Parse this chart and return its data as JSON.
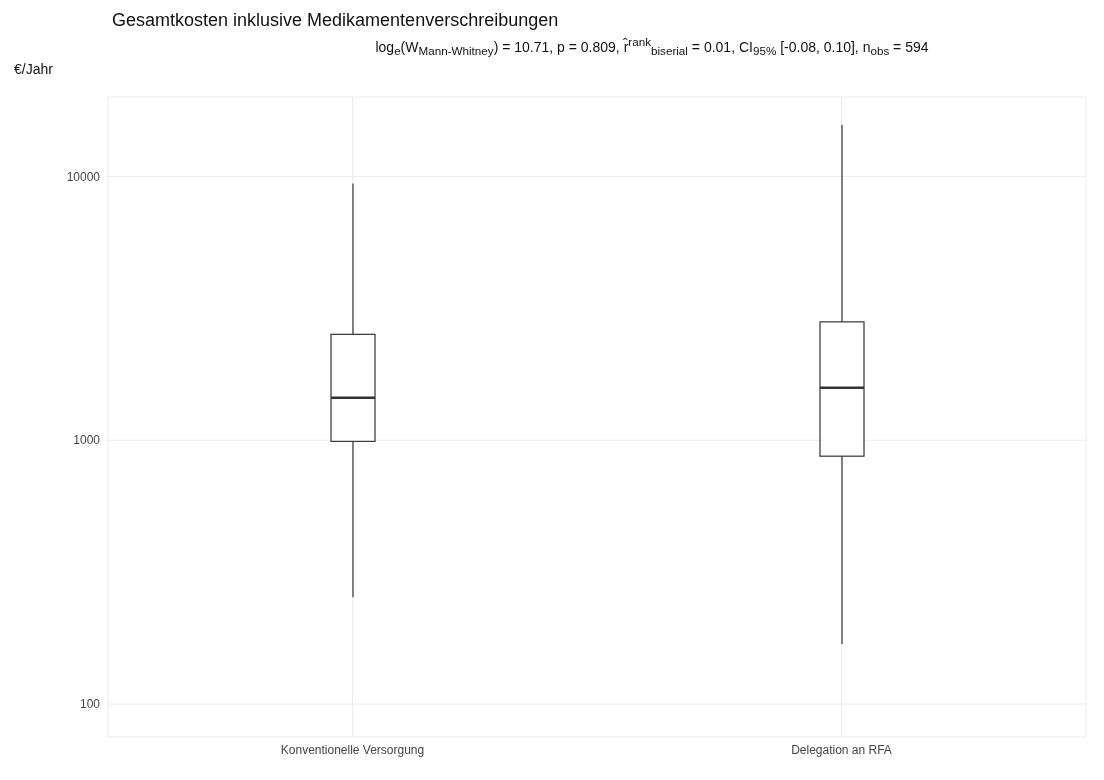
{
  "chart_data": {
    "type": "box",
    "title": "Gesamtkosten inklusive Medikamentenverschreibungen",
    "subtitle": "log$_{e}$(W$_{Mann-Whitney}$) = 10.71, p = 0.809, r̂$^{rank}$$_{biserial}$ = 0.01, CI$_{95%}$ [-0.08, 0.10], n$_{obs}$ = 594",
    "ylabel": "€/Jahr",
    "categories": [
      "Konventionelle Versorgung",
      "Delegation an RFA"
    ],
    "boxes": [
      {
        "low": 254,
        "q1": 990,
        "median": 1450,
        "q3": 2520,
        "high": 9400
      },
      {
        "low": 169,
        "q1": 870,
        "median": 1580,
        "q3": 2810,
        "high": 15700
      }
    ],
    "log": true,
    "ylim": [
      75,
      20000
    ],
    "yticks": [
      100,
      1000,
      10000
    ],
    "grid": true
  }
}
